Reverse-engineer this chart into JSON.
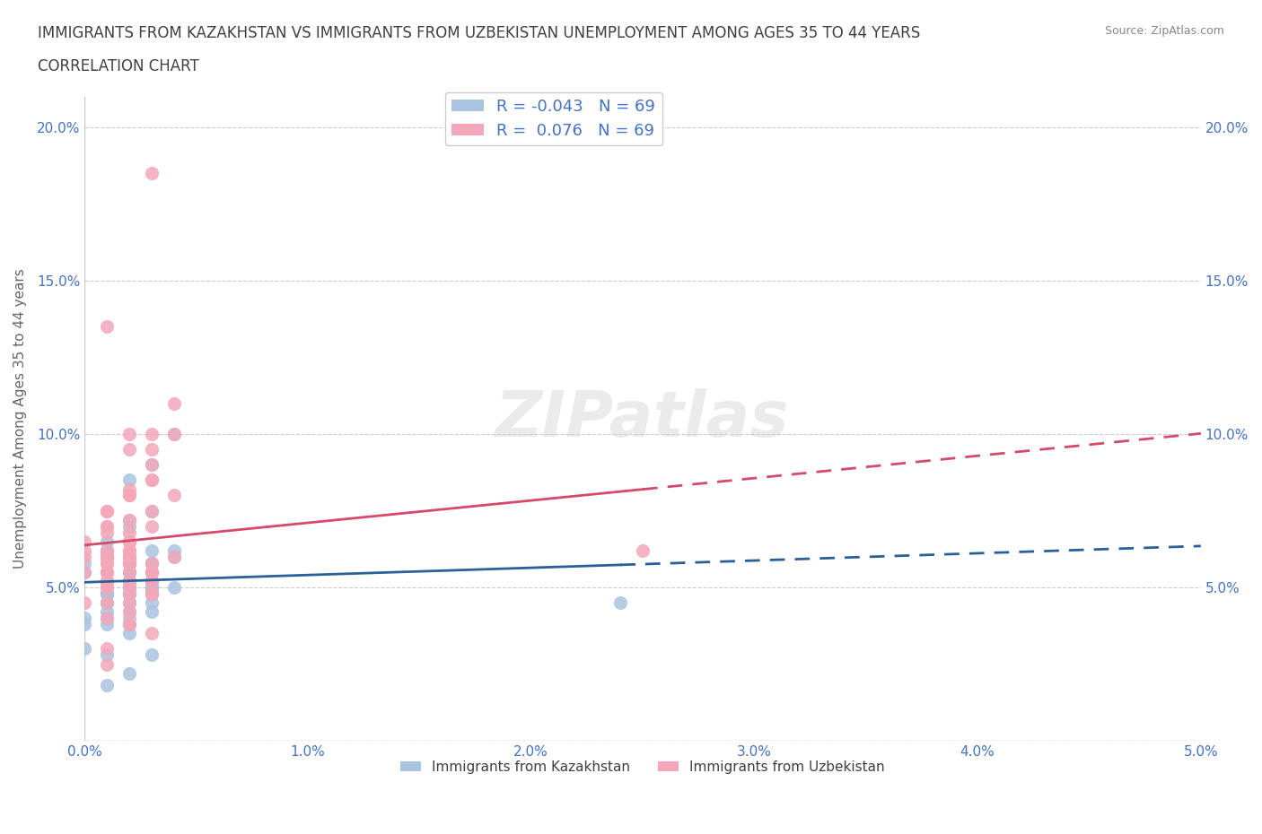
{
  "title_line1": "IMMIGRANTS FROM KAZAKHSTAN VS IMMIGRANTS FROM UZBEKISTAN UNEMPLOYMENT AMONG AGES 35 TO 44 YEARS",
  "title_line2": "CORRELATION CHART",
  "source": "Source: ZipAtlas.com",
  "ylabel": "Unemployment Among Ages 35 to 44 years",
  "xlim": [
    0.0,
    0.05
  ],
  "ylim": [
    0.0,
    0.21
  ],
  "x_ticks": [
    0.0,
    0.01,
    0.02,
    0.03,
    0.04,
    0.05
  ],
  "x_tick_labels": [
    "0.0%",
    "1.0%",
    "2.0%",
    "3.0%",
    "4.0%",
    "5.0%"
  ],
  "y_ticks": [
    0.0,
    0.05,
    0.1,
    0.15,
    0.2
  ],
  "y_tick_labels": [
    "",
    "5.0%",
    "10.0%",
    "15.0%",
    "20.0%"
  ],
  "watermark": "ZIPatlas",
  "legend_kaz_R": "-0.043",
  "legend_kaz_N": "69",
  "legend_uzb_R": "0.076",
  "legend_uzb_N": "69",
  "color_kaz": "#a8c4e0",
  "color_uzb": "#f4a7b9",
  "trend_kaz_color": "#2a6099",
  "trend_uzb_color": "#d44a6a",
  "background_color": "#ffffff",
  "grid_color": "#cccccc",
  "title_color": "#404040",
  "axis_color": "#4472c4",
  "kaz_x": [
    0.001,
    0.002,
    0.001,
    0.003,
    0.002,
    0.001,
    0.0,
    0.001,
    0.0,
    0.001,
    0.0,
    0.002,
    0.001,
    0.002,
    0.003,
    0.001,
    0.002,
    0.003,
    0.004,
    0.002,
    0.003,
    0.003,
    0.004,
    0.002,
    0.003,
    0.004,
    0.002,
    0.003,
    0.001,
    0.0,
    0.001,
    0.001,
    0.003,
    0.002,
    0.001,
    0.002,
    0.001,
    0.0,
    0.002,
    0.003,
    0.002,
    0.001,
    0.003,
    0.002,
    0.004,
    0.001,
    0.002,
    0.002,
    0.003,
    0.002,
    0.003,
    0.024,
    0.001,
    0.002,
    0.003,
    0.002,
    0.001,
    0.002,
    0.001,
    0.002,
    0.003,
    0.001,
    0.002,
    0.003,
    0.002,
    0.001,
    0.003,
    0.001,
    0.002
  ],
  "kaz_y": [
    0.06,
    0.055,
    0.065,
    0.058,
    0.072,
    0.048,
    0.055,
    0.062,
    0.04,
    0.045,
    0.058,
    0.07,
    0.052,
    0.048,
    0.062,
    0.055,
    0.085,
    0.075,
    0.1,
    0.06,
    0.052,
    0.09,
    0.06,
    0.058,
    0.05,
    0.062,
    0.052,
    0.048,
    0.04,
    0.03,
    0.018,
    0.042,
    0.055,
    0.05,
    0.06,
    0.045,
    0.052,
    0.038,
    0.048,
    0.058,
    0.052,
    0.062,
    0.028,
    0.022,
    0.05,
    0.062,
    0.058,
    0.048,
    0.055,
    0.058,
    0.05,
    0.045,
    0.028,
    0.035,
    0.048,
    0.055,
    0.062,
    0.052,
    0.038,
    0.042,
    0.05,
    0.048,
    0.05,
    0.045,
    0.052,
    0.048,
    0.042,
    0.045,
    0.04
  ],
  "uzb_x": [
    0.001,
    0.002,
    0.001,
    0.003,
    0.002,
    0.001,
    0.0,
    0.001,
    0.0,
    0.001,
    0.0,
    0.002,
    0.001,
    0.002,
    0.003,
    0.001,
    0.002,
    0.003,
    0.004,
    0.002,
    0.003,
    0.003,
    0.004,
    0.002,
    0.003,
    0.004,
    0.002,
    0.003,
    0.001,
    0.0,
    0.001,
    0.001,
    0.003,
    0.002,
    0.001,
    0.002,
    0.001,
    0.0,
    0.002,
    0.003,
    0.002,
    0.001,
    0.003,
    0.002,
    0.004,
    0.001,
    0.002,
    0.002,
    0.003,
    0.002,
    0.003,
    0.025,
    0.001,
    0.002,
    0.003,
    0.002,
    0.001,
    0.002,
    0.001,
    0.002,
    0.003,
    0.001,
    0.002,
    0.003,
    0.002,
    0.001,
    0.003,
    0.001,
    0.002
  ],
  "uzb_y": [
    0.058,
    0.062,
    0.07,
    0.055,
    0.065,
    0.05,
    0.06,
    0.058,
    0.045,
    0.052,
    0.065,
    0.072,
    0.05,
    0.055,
    0.185,
    0.135,
    0.095,
    0.1,
    0.1,
    0.06,
    0.09,
    0.095,
    0.08,
    0.1,
    0.085,
    0.11,
    0.082,
    0.075,
    0.04,
    0.062,
    0.075,
    0.068,
    0.085,
    0.08,
    0.075,
    0.05,
    0.06,
    0.055,
    0.058,
    0.048,
    0.08,
    0.055,
    0.035,
    0.038,
    0.06,
    0.07,
    0.062,
    0.052,
    0.055,
    0.065,
    0.07,
    0.062,
    0.025,
    0.038,
    0.052,
    0.06,
    0.055,
    0.045,
    0.03,
    0.042,
    0.048,
    0.06,
    0.068,
    0.052,
    0.058,
    0.062,
    0.058,
    0.045,
    0.048
  ]
}
